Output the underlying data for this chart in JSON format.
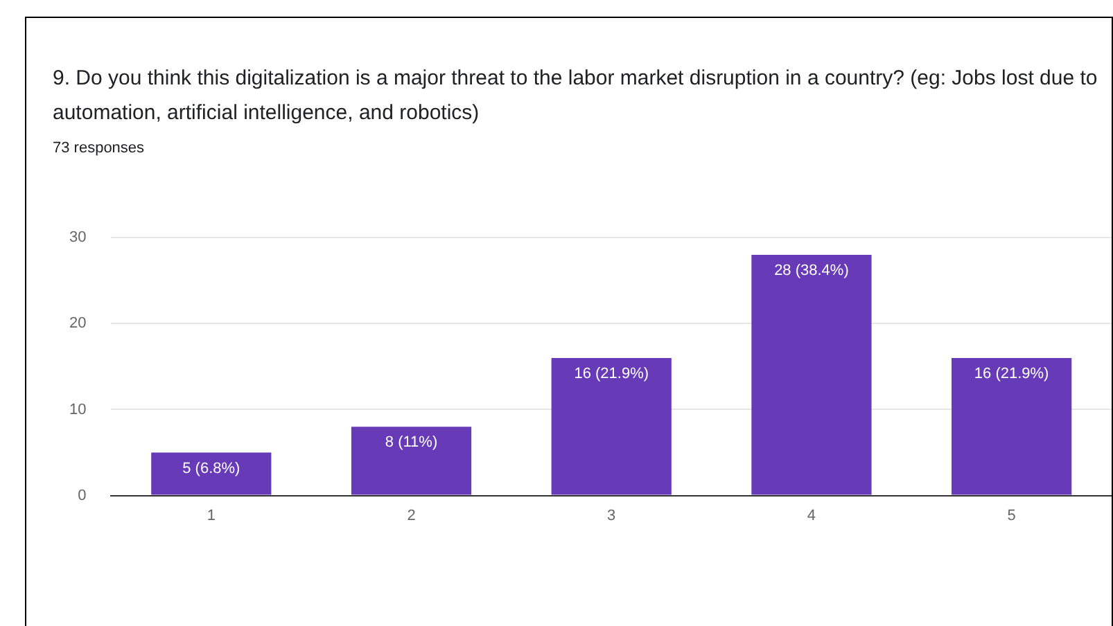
{
  "chart_data": {
    "type": "bar",
    "title": "9. Do you think this digitalization is a major threat to the labor market disruption in a country? (eg: Jobs lost due to automation, artificial intelligence, and robotics)",
    "subtitle": "73 responses",
    "categories": [
      "1",
      "2",
      "3",
      "4",
      "5"
    ],
    "values": [
      5,
      8,
      16,
      28,
      16
    ],
    "value_labels": [
      "5 (6.8%)",
      "8 (11%)",
      "16 (21.9%)",
      "28 (38.4%)",
      "16 (21.9%)"
    ],
    "color": "#673ab7",
    "ylim": [
      0,
      30
    ],
    "yticks": [
      0,
      10,
      20,
      30
    ],
    "grid": "y",
    "legend": false
  }
}
